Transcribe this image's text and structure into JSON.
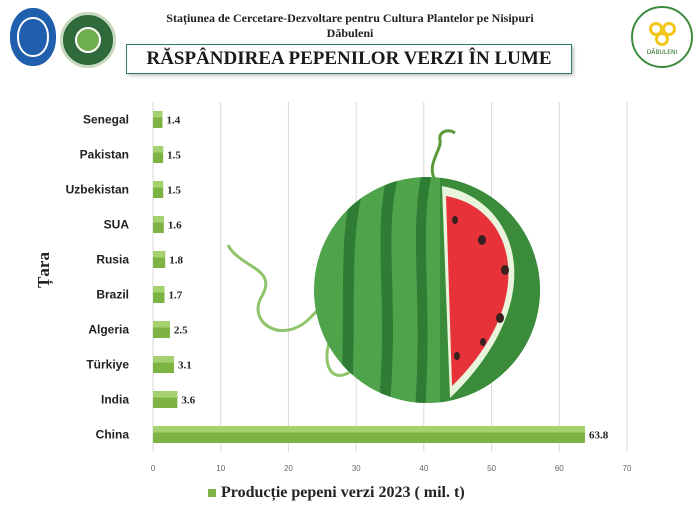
{
  "header": {
    "line1": "Stațiunea de Cercetare-Dezvoltare pentru Cultura Plantelor pe Nisipuri",
    "line2": "Dăbuleni"
  },
  "logos": {
    "right_caption": "DĂBULENI"
  },
  "chart_data": {
    "type": "bar",
    "orientation": "horizontal",
    "title": "RĂSPÂNDIREA PEPENILOR VERZI ÎN LUME",
    "ylabel": "Țara",
    "xlabel": "",
    "categories": [
      "Senegal",
      "Pakistan",
      "Uzbekistan",
      "SUA",
      "Rusia",
      "Brazil",
      "Algeria",
      "Türkiye",
      "India",
      "China"
    ],
    "series": [
      {
        "name": "Producție pepeni verzi 2023 ( mil. t)",
        "values": [
          1.4,
          1.5,
          1.5,
          1.6,
          1.8,
          1.7,
          2.5,
          3.1,
          3.6,
          63.8
        ],
        "labels": [
          "1.4",
          "1.5",
          "1.5",
          "1.6",
          "1.8",
          "1.7",
          "2.5",
          "3.1",
          "3.6",
          "63.8"
        ]
      }
    ],
    "xlim": [
      0,
      70
    ],
    "xticks": [
      "0",
      "10",
      "20",
      "30",
      "40",
      "50",
      "60",
      "70"
    ],
    "grid": true,
    "legend_position": "bottom",
    "bar_color": "#7cb342",
    "decoration": "watermelon-illustration"
  }
}
